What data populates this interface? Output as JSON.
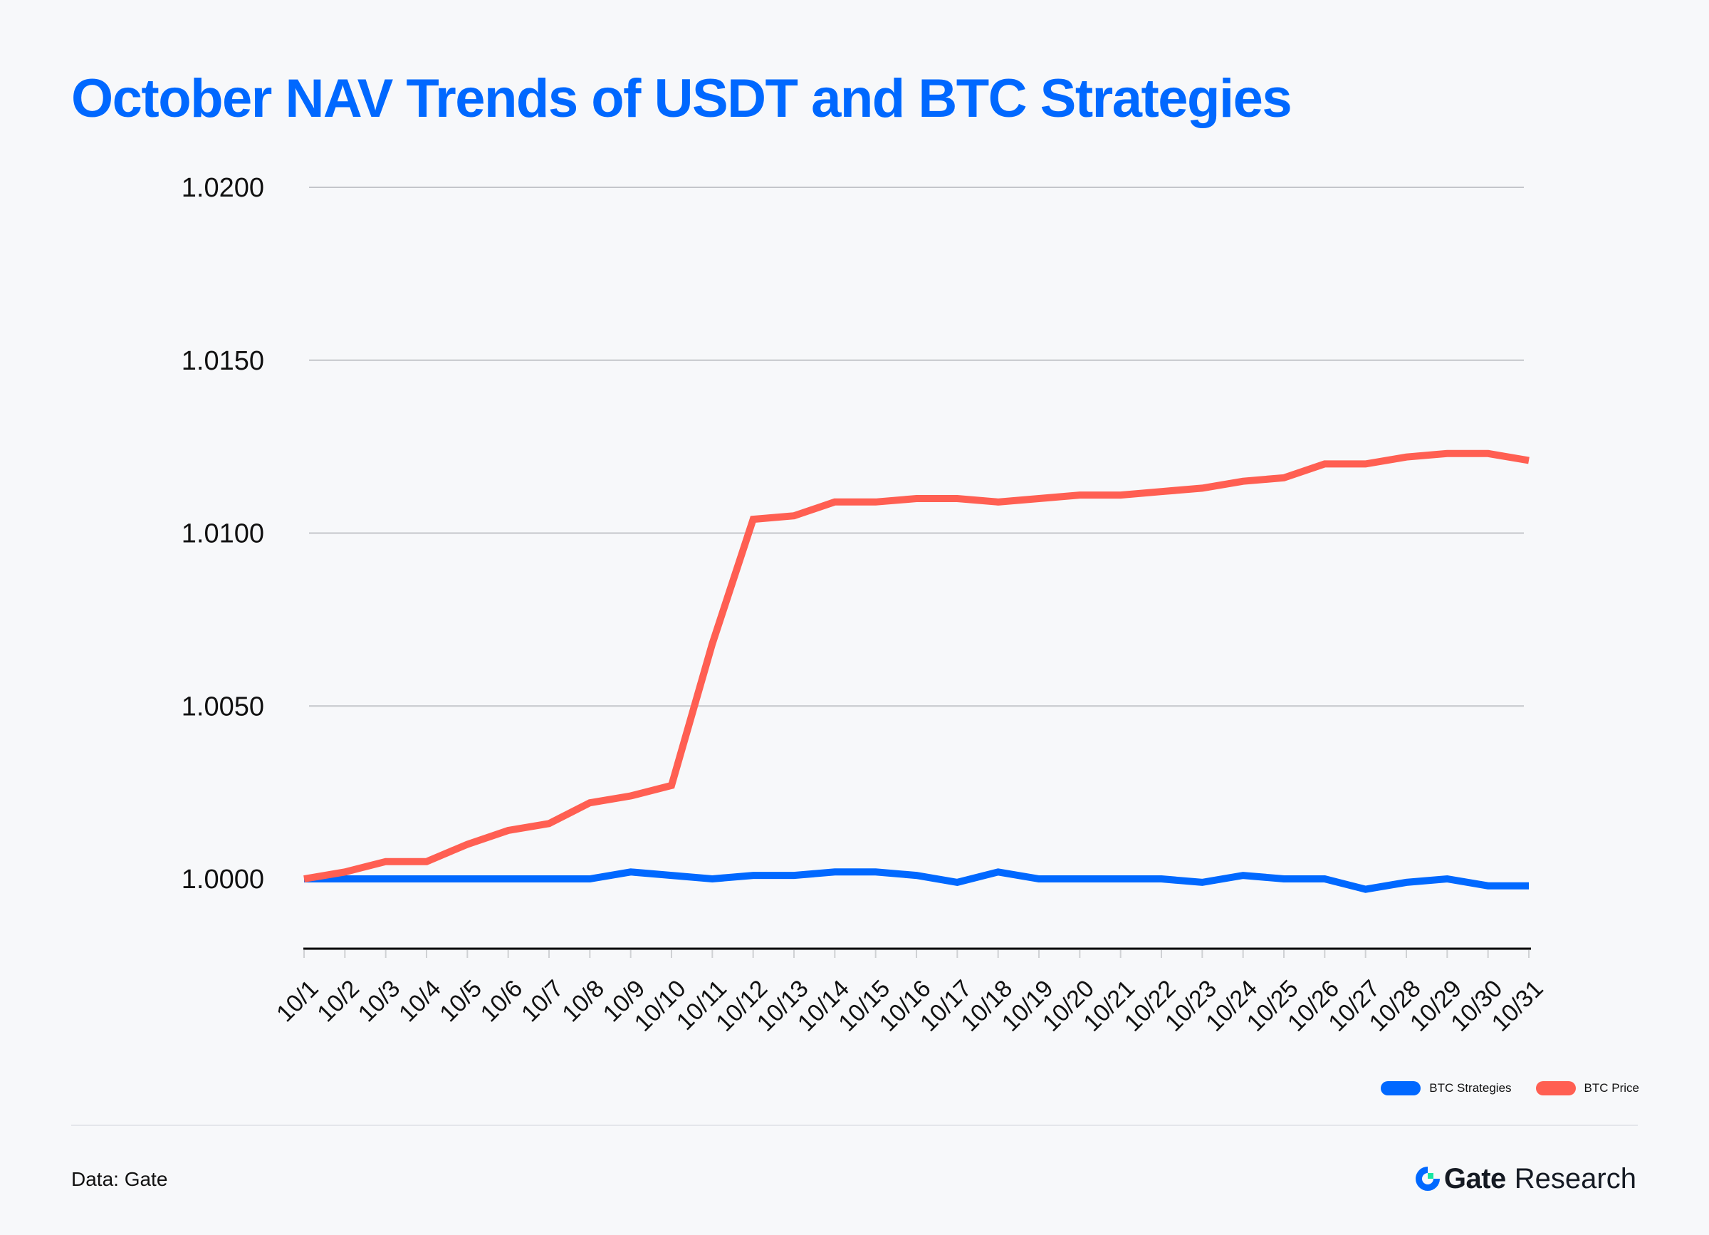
{
  "title": "October NAV Trends of USDT and BTC Strategies",
  "source": "Data: Gate",
  "brand": {
    "name": "Gate",
    "suffix": "Research",
    "icon": "gate-logo-icon"
  },
  "colors": {
    "title": "#0068ff",
    "btc_strategies": "#0068ff",
    "btc_price": "#ff5f52",
    "grid": "#c4c6ca",
    "axis": "#000000",
    "background": "#f7f8fa"
  },
  "chart_data": {
    "type": "line",
    "title": "October NAV Trends of USDT and BTC Strategies",
    "xlabel": "",
    "ylabel": "",
    "ylim": [
      0.998,
      1.02
    ],
    "yticks": [
      "1.0000",
      "1.0050",
      "1.0100",
      "1.0150",
      "1.0200"
    ],
    "ytick_values": [
      1.0,
      1.005,
      1.01,
      1.015,
      1.02
    ],
    "grid": true,
    "legend_position": "bottom-right",
    "categories": [
      "10/1",
      "10/2",
      "10/3",
      "10/4",
      "10/5",
      "10/6",
      "10/7",
      "10/8",
      "10/9",
      "10/10",
      "10/11",
      "10/12",
      "10/13",
      "10/14",
      "10/15",
      "10/16",
      "10/17",
      "10/18",
      "10/19",
      "10/20",
      "10/21",
      "10/22",
      "10/23",
      "10/24",
      "10/25",
      "10/26",
      "10/27",
      "10/28",
      "10/29",
      "10/30",
      "10/31"
    ],
    "series": [
      {
        "name": "BTC Strategies",
        "color": "#0068ff",
        "values": [
          1.0,
          1.0,
          1.0,
          1.0,
          1.0,
          1.0,
          1.0,
          1.0,
          1.0002,
          1.0001,
          1.0,
          1.0001,
          1.0001,
          1.0002,
          1.0002,
          1.0001,
          0.9999,
          1.0002,
          1.0,
          1.0,
          1.0,
          1.0,
          0.9999,
          1.0001,
          1.0,
          1.0,
          0.9997,
          0.9999,
          1.0,
          0.9998,
          0.9998
        ]
      },
      {
        "name": "BTC Price",
        "color": "#ff5f52",
        "values": [
          1.0,
          1.0002,
          1.0005,
          1.0005,
          1.001,
          1.0014,
          1.0016,
          1.0022,
          1.0024,
          1.0027,
          1.0068,
          1.0104,
          1.0105,
          1.0109,
          1.0109,
          1.011,
          1.011,
          1.0109,
          1.011,
          1.0111,
          1.0111,
          1.0112,
          1.0113,
          1.0115,
          1.0116,
          1.012,
          1.012,
          1.0122,
          1.0123,
          1.0123,
          1.0121
        ]
      }
    ]
  }
}
